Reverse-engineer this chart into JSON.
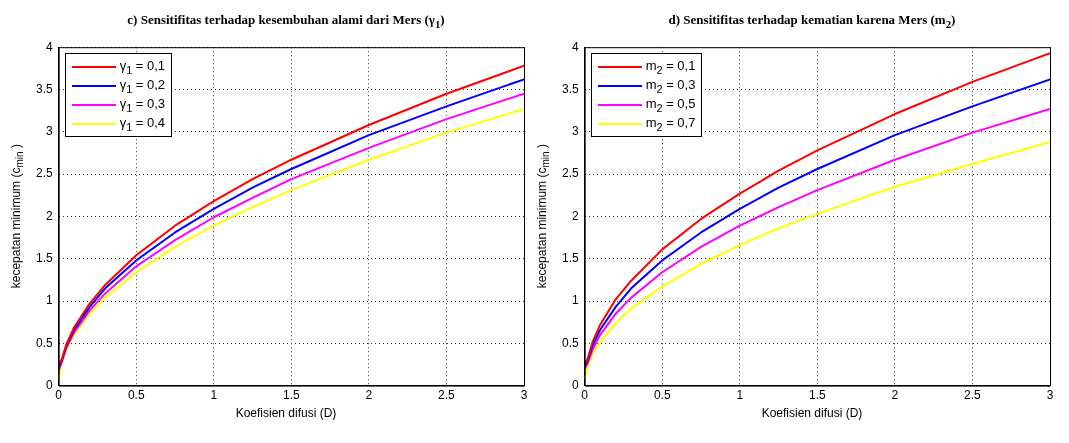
{
  "chart_data": [
    {
      "type": "line",
      "title": "c) Sensitifitas terhadap kesembuhan alami dari Mers (γ$_{1}$)",
      "xlabel": "Koefisien difusi (D)",
      "ylabel": "kecepatan minimum (c$_{min}$ )",
      "x": [
        0,
        0.02,
        0.05,
        0.1,
        0.2,
        0.3,
        0.5,
        0.75,
        1,
        1.25,
        1.5,
        2,
        2.5,
        3
      ],
      "xlim": [
        0,
        3
      ],
      "xticks": [
        0,
        0.5,
        1,
        1.5,
        2,
        2.5,
        3
      ],
      "ylim": [
        0,
        4
      ],
      "yticks": [
        0,
        0.5,
        1,
        1.5,
        2,
        2.5,
        3,
        3.5,
        4
      ],
      "grid": true,
      "legend": "top left",
      "marker": "none",
      "line_style": "solid",
      "series": [
        {
          "name": "γ$_{1}$ = 0,1",
          "color": "#ff0000",
          "values": [
            0.25,
            0.31,
            0.49,
            0.69,
            0.97,
            1.19,
            1.54,
            1.89,
            2.18,
            2.44,
            2.67,
            3.08,
            3.45,
            3.78
          ]
        },
        {
          "name": "γ$_{1}$ = 0,2",
          "color": "#0000ff",
          "values": [
            0.22,
            0.3,
            0.47,
            0.66,
            0.93,
            1.15,
            1.48,
            1.81,
            2.09,
            2.34,
            2.56,
            2.96,
            3.3,
            3.62
          ]
        },
        {
          "name": "γ$_{1}$ = 0,3",
          "color": "#ff00ff",
          "values": [
            0.18,
            0.28,
            0.45,
            0.63,
            0.89,
            1.09,
            1.41,
            1.72,
            1.99,
            2.22,
            2.44,
            2.81,
            3.15,
            3.45
          ]
        },
        {
          "name": "γ$_{1}$ = 0,4",
          "color": "#ffff00",
          "values": [
            0.08,
            0.27,
            0.42,
            0.6,
            0.85,
            1.04,
            1.34,
            1.64,
            1.89,
            2.11,
            2.31,
            2.67,
            2.99,
            3.27
          ]
        }
      ]
    },
    {
      "type": "line",
      "title": "d) Sensitifitas terhadap kematian karena Mers (m$_{2}$)",
      "xlabel": "Koefisien difusi (D)",
      "ylabel": "kecepatan minimum (c$_{min}$ )",
      "x": [
        0,
        0.02,
        0.05,
        0.1,
        0.2,
        0.3,
        0.5,
        0.75,
        1,
        1.25,
        1.5,
        2,
        2.5,
        3
      ],
      "xlim": [
        0,
        3
      ],
      "xticks": [
        0,
        0.5,
        1,
        1.5,
        2,
        2.5,
        3
      ],
      "ylim": [
        0,
        4
      ],
      "yticks": [
        0,
        0.5,
        1,
        1.5,
        2,
        2.5,
        3,
        3.5,
        4
      ],
      "grid": true,
      "legend": "top left",
      "marker": "none",
      "line_style": "solid",
      "series": [
        {
          "name": "m$_{2}$ = 0,1",
          "color": "#ff0000",
          "values": [
            0.25,
            0.32,
            0.51,
            0.72,
            1.02,
            1.24,
            1.61,
            1.97,
            2.27,
            2.54,
            2.78,
            3.21,
            3.59,
            3.93
          ]
        },
        {
          "name": "m$_{2}$ = 0,3",
          "color": "#0000ff",
          "values": [
            0.22,
            0.3,
            0.47,
            0.66,
            0.93,
            1.15,
            1.48,
            1.81,
            2.09,
            2.34,
            2.56,
            2.96,
            3.3,
            3.62
          ]
        },
        {
          "name": "m$_{2}$ = 0,5",
          "color": "#ff00ff",
          "values": [
            0.2,
            0.27,
            0.42,
            0.6,
            0.85,
            1.04,
            1.34,
            1.64,
            1.89,
            2.11,
            2.31,
            2.67,
            2.99,
            3.27
          ]
        },
        {
          "name": "m$_{2}$ = 0,7",
          "color": "#ffff00",
          "values": [
            0.08,
            0.23,
            0.37,
            0.52,
            0.74,
            0.91,
            1.17,
            1.44,
            1.66,
            1.86,
            2.03,
            2.35,
            2.62,
            2.88
          ]
        }
      ]
    }
  ]
}
